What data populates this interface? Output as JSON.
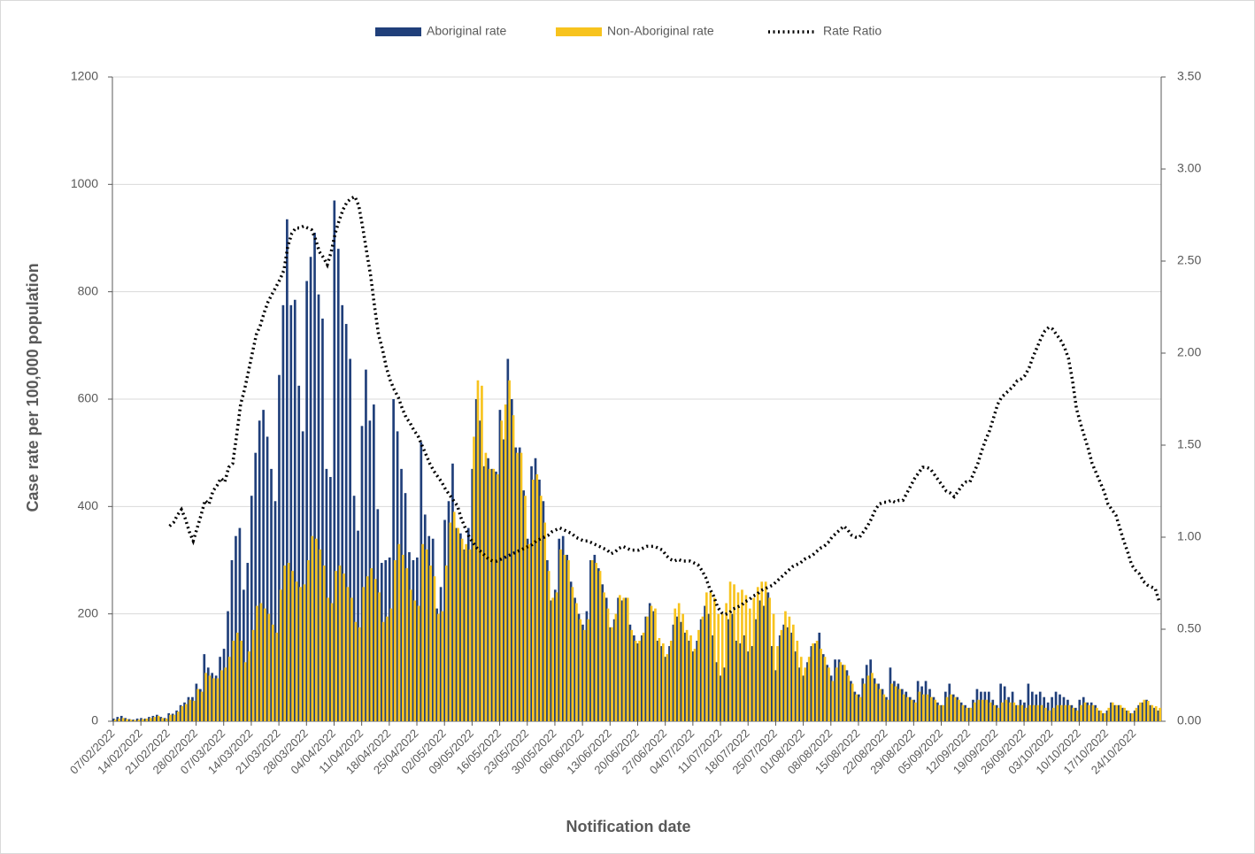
{
  "chart_data": {
    "type": "bar-line",
    "x_label": "Notification date",
    "y_label": "Case rate per 100,000 population",
    "ylim": [
      0,
      1200
    ],
    "yticks": [
      0,
      200,
      400,
      600,
      800,
      1000,
      1200
    ],
    "y2lim": [
      0,
      3.5
    ],
    "y2ticks": [
      {
        "value": 0,
        "label": "0.00"
      },
      {
        "value": 0.5,
        "label": "0.50"
      },
      {
        "value": 1,
        "label": "1.00"
      },
      {
        "value": 1.5,
        "label": "1.50"
      },
      {
        "value": 2,
        "label": "2.00"
      },
      {
        "value": 2.5,
        "label": "2.50"
      },
      {
        "value": 3,
        "label": "3.00"
      },
      {
        "value": 3.5,
        "label": "3.50"
      }
    ],
    "grid": true,
    "legend": "top",
    "categories": [
      "07/02/2022",
      null,
      null,
      null,
      null,
      null,
      null,
      "14/02/2022",
      null,
      null,
      null,
      null,
      null,
      null,
      "21/02/2022",
      null,
      null,
      null,
      null,
      null,
      null,
      "28/02/2022",
      null,
      null,
      null,
      null,
      null,
      null,
      "07/03/2022",
      null,
      null,
      null,
      null,
      null,
      null,
      "14/03/2022",
      null,
      null,
      null,
      null,
      null,
      null,
      "21/03/2022",
      null,
      null,
      null,
      null,
      null,
      null,
      "28/03/2022",
      null,
      null,
      null,
      null,
      null,
      null,
      "04/04/2022",
      null,
      null,
      null,
      null,
      null,
      null,
      "11/04/2022",
      null,
      null,
      null,
      null,
      null,
      null,
      "18/04/2022",
      null,
      null,
      null,
      null,
      null,
      null,
      "25/04/2022",
      null,
      null,
      null,
      null,
      null,
      null,
      "02/05/2022",
      null,
      null,
      null,
      null,
      null,
      null,
      "09/05/2022",
      null,
      null,
      null,
      null,
      null,
      null,
      "16/05/2022",
      null,
      null,
      null,
      null,
      null,
      null,
      "23/05/2022",
      null,
      null,
      null,
      null,
      null,
      null,
      "30/05/2022",
      null,
      null,
      null,
      null,
      null,
      null,
      "06/06/2022",
      null,
      null,
      null,
      null,
      null,
      null,
      "13/06/2022",
      null,
      null,
      null,
      null,
      null,
      null,
      "20/06/2022",
      null,
      null,
      null,
      null,
      null,
      null,
      "27/06/2022",
      null,
      null,
      null,
      null,
      null,
      null,
      "04/07/2022",
      null,
      null,
      null,
      null,
      null,
      null,
      "11/07/2022",
      null,
      null,
      null,
      null,
      null,
      null,
      "18/07/2022",
      null,
      null,
      null,
      null,
      null,
      null,
      "25/07/2022",
      null,
      null,
      null,
      null,
      null,
      null,
      "01/08/2022",
      null,
      null,
      null,
      null,
      null,
      null,
      "08/08/2022",
      null,
      null,
      null,
      null,
      null,
      null,
      "15/08/2022",
      null,
      null,
      null,
      null,
      null,
      null,
      "22/08/2022",
      null,
      null,
      null,
      null,
      null,
      null,
      "29/08/2022",
      null,
      null,
      null,
      null,
      null,
      null,
      "05/09/2022",
      null,
      null,
      null,
      null,
      null,
      null,
      "12/09/2022",
      null,
      null,
      null,
      null,
      null,
      null,
      "19/09/2022",
      null,
      null,
      null,
      null,
      null,
      null,
      "26/09/2022",
      null,
      null,
      null,
      null,
      null,
      null,
      "03/10/2022",
      null,
      null,
      null,
      null,
      null,
      null,
      "10/10/2022",
      null,
      null,
      null,
      null,
      null,
      null,
      "17/10/2022",
      null,
      null,
      null,
      null,
      null,
      null,
      "24/10/2022",
      null,
      null,
      null,
      null,
      null,
      null
    ],
    "series": [
      {
        "name": "Aboriginal rate",
        "type": "bar",
        "color": "#203f7a",
        "values": [
          5,
          8,
          10,
          6,
          4,
          3,
          5,
          6,
          5,
          8,
          10,
          12,
          8,
          6,
          15,
          14,
          20,
          30,
          35,
          45,
          45,
          70,
          60,
          125,
          100,
          90,
          85,
          120,
          135,
          205,
          300,
          345,
          360,
          245,
          295,
          420,
          500,
          560,
          580,
          530,
          470,
          410,
          645,
          775,
          935,
          775,
          785,
          625,
          540,
          820,
          865,
          910,
          795,
          750,
          470,
          455,
          970,
          880,
          775,
          740,
          675,
          420,
          355,
          550,
          655,
          560,
          590,
          395,
          295,
          300,
          305,
          600,
          540,
          470,
          425,
          315,
          300,
          305,
          520,
          385,
          345,
          340,
          210,
          250,
          375,
          410,
          480,
          360,
          350,
          320,
          360,
          470,
          600,
          560,
          475,
          490,
          470,
          465,
          580,
          525,
          675,
          600,
          510,
          510,
          430,
          340,
          475,
          490,
          450,
          410,
          300,
          225,
          245,
          340,
          345,
          310,
          260,
          230,
          200,
          180,
          205,
          300,
          310,
          285,
          255,
          230,
          175,
          190,
          230,
          225,
          230,
          180,
          160,
          145,
          160,
          195,
          220,
          205,
          150,
          140,
          120,
          140,
          180,
          195,
          185,
          165,
          150,
          130,
          150,
          190,
          215,
          200,
          160,
          110,
          85,
          100,
          190,
          200,
          150,
          145,
          160,
          130,
          140,
          190,
          225,
          215,
          240,
          140,
          95,
          160,
          180,
          175,
          165,
          130,
          100,
          85,
          110,
          140,
          145,
          165,
          125,
          105,
          85,
          115,
          115,
          105,
          95,
          75,
          55,
          50,
          80,
          105,
          115,
          80,
          70,
          60,
          45,
          100,
          75,
          70,
          60,
          55,
          45,
          40,
          75,
          65,
          75,
          60,
          45,
          35,
          30,
          55,
          70,
          50,
          45,
          35,
          30,
          25,
          40,
          60,
          55,
          55,
          55,
          40,
          30,
          70,
          65,
          45,
          55,
          30,
          40,
          35,
          70,
          55,
          50,
          55,
          45,
          35,
          45,
          55,
          50,
          45,
          40,
          30,
          25,
          40,
          45,
          35,
          35,
          30,
          20,
          15,
          20,
          35,
          30,
          30,
          25,
          20,
          15,
          20,
          30,
          35,
          40,
          30,
          25,
          20
        ]
      },
      {
        "name": "Non-Aboriginal rate",
        "type": "bar",
        "color": "#f7c31e",
        "values": [
          3,
          5,
          6,
          4,
          3,
          2,
          3,
          4,
          5,
          6,
          8,
          10,
          6,
          5,
          12,
          12,
          18,
          28,
          32,
          40,
          38,
          60,
          55,
          90,
          85,
          80,
          80,
          95,
          100,
          120,
          150,
          165,
          150,
          110,
          130,
          170,
          215,
          220,
          210,
          200,
          180,
          165,
          245,
          290,
          295,
          280,
          260,
          250,
          255,
          300,
          345,
          340,
          320,
          290,
          230,
          220,
          280,
          290,
          275,
          250,
          230,
          185,
          175,
          250,
          270,
          285,
          265,
          240,
          185,
          195,
          210,
          300,
          330,
          310,
          285,
          245,
          225,
          215,
          330,
          320,
          290,
          270,
          200,
          205,
          290,
          370,
          390,
          360,
          340,
          330,
          320,
          530,
          635,
          625,
          500,
          470,
          470,
          460,
          560,
          590,
          635,
          570,
          500,
          500,
          420,
          330,
          450,
          460,
          420,
          370,
          280,
          230,
          240,
          320,
          310,
          300,
          250,
          220,
          190,
          170,
          190,
          300,
          295,
          280,
          240,
          210,
          175,
          200,
          235,
          230,
          230,
          170,
          150,
          150,
          165,
          195,
          215,
          210,
          155,
          145,
          125,
          150,
          210,
          220,
          200,
          170,
          160,
          135,
          170,
          195,
          240,
          240,
          230,
          200,
          200,
          220,
          260,
          255,
          240,
          245,
          235,
          210,
          230,
          250,
          260,
          260,
          230,
          200,
          140,
          170,
          205,
          195,
          180,
          150,
          120,
          100,
          120,
          145,
          150,
          135,
          120,
          100,
          75,
          100,
          110,
          105,
          85,
          70,
          50,
          45,
          70,
          85,
          90,
          70,
          60,
          50,
          40,
          70,
          65,
          60,
          50,
          45,
          40,
          35,
          55,
          50,
          50,
          45,
          40,
          30,
          30,
          45,
          50,
          45,
          40,
          30,
          25,
          25,
          35,
          40,
          40,
          40,
          35,
          30,
          25,
          35,
          40,
          35,
          35,
          30,
          30,
          25,
          30,
          30,
          30,
          30,
          25,
          20,
          25,
          30,
          30,
          30,
          30,
          25,
          20,
          30,
          35,
          30,
          30,
          25,
          20,
          15,
          25,
          35,
          30,
          30,
          25,
          20,
          15,
          25,
          35,
          40,
          38,
          30,
          28,
          25
        ]
      },
      {
        "name": "Rate Ratio",
        "type": "line",
        "axis": "y2",
        "color": "#000000",
        "values": [
          null,
          null,
          null,
          null,
          null,
          null,
          null,
          null,
          null,
          null,
          null,
          null,
          null,
          null,
          1.06,
          1.08,
          1.12,
          1.15,
          1.1,
          1.03,
          0.98,
          1.05,
          1.12,
          1.2,
          1.18,
          1.25,
          1.28,
          1.32,
          1.3,
          1.38,
          1.4,
          1.55,
          1.72,
          1.8,
          1.9,
          2.0,
          2.1,
          2.15,
          2.22,
          2.28,
          2.32,
          2.36,
          2.4,
          2.45,
          2.58,
          2.65,
          2.68,
          2.68,
          2.69,
          2.68,
          2.67,
          2.62,
          2.55,
          2.52,
          2.48,
          2.55,
          2.65,
          2.72,
          2.78,
          2.82,
          2.84,
          2.85,
          2.8,
          2.68,
          2.55,
          2.42,
          2.25,
          2.1,
          2.02,
          1.92,
          1.85,
          1.8,
          1.76,
          1.7,
          1.65,
          1.62,
          1.58,
          1.55,
          1.5,
          1.45,
          1.4,
          1.36,
          1.33,
          1.3,
          1.26,
          1.23,
          1.2,
          1.17,
          1.1,
          1.05,
          1.0,
          0.97,
          0.94,
          0.92,
          0.9,
          0.88,
          0.87,
          0.87,
          0.88,
          0.89,
          0.9,
          0.91,
          0.92,
          0.93,
          0.94,
          0.95,
          0.96,
          0.98,
          0.99,
          1.0,
          1.01,
          1.03,
          1.04,
          1.05,
          1.04,
          1.03,
          1.02,
          1.0,
          0.99,
          0.98,
          0.98,
          0.97,
          0.96,
          0.95,
          0.94,
          0.93,
          0.91,
          0.92,
          0.94,
          0.95,
          0.94,
          0.93,
          0.93,
          0.93,
          0.94,
          0.95,
          0.95,
          0.95,
          0.94,
          0.93,
          0.9,
          0.88,
          0.87,
          0.88,
          0.87,
          0.87,
          0.87,
          0.86,
          0.85,
          0.82,
          0.78,
          0.72,
          0.68,
          0.62,
          0.59,
          0.58,
          0.59,
          0.61,
          0.62,
          0.63,
          0.65,
          0.66,
          0.68,
          0.69,
          0.71,
          0.72,
          0.73,
          0.74,
          0.76,
          0.78,
          0.8,
          0.82,
          0.84,
          0.85,
          0.86,
          0.88,
          0.89,
          0.9,
          0.92,
          0.94,
          0.95,
          0.97,
          1.0,
          1.02,
          1.04,
          1.06,
          1.04,
          1.01,
          1.0,
          1.0,
          1.03,
          1.06,
          1.1,
          1.15,
          1.18,
          1.19,
          1.19,
          1.2,
          1.19,
          1.2,
          1.2,
          1.24,
          1.28,
          1.32,
          1.35,
          1.38,
          1.38,
          1.37,
          1.34,
          1.31,
          1.28,
          1.25,
          1.24,
          1.22,
          1.25,
          1.28,
          1.3,
          1.3,
          1.35,
          1.4,
          1.47,
          1.53,
          1.58,
          1.65,
          1.72,
          1.76,
          1.78,
          1.8,
          1.82,
          1.85,
          1.86,
          1.88,
          1.92,
          1.98,
          2.03,
          2.08,
          2.12,
          2.14,
          2.13,
          2.1,
          2.07,
          2.03,
          1.97,
          1.85,
          1.7,
          1.62,
          1.55,
          1.48,
          1.4,
          1.35,
          1.3,
          1.25,
          1.18,
          1.15,
          1.12,
          1.05,
          0.98,
          0.92,
          0.85,
          0.82,
          0.8,
          0.76,
          0.74,
          0.73,
          0.72,
          0.65
        ]
      }
    ]
  }
}
